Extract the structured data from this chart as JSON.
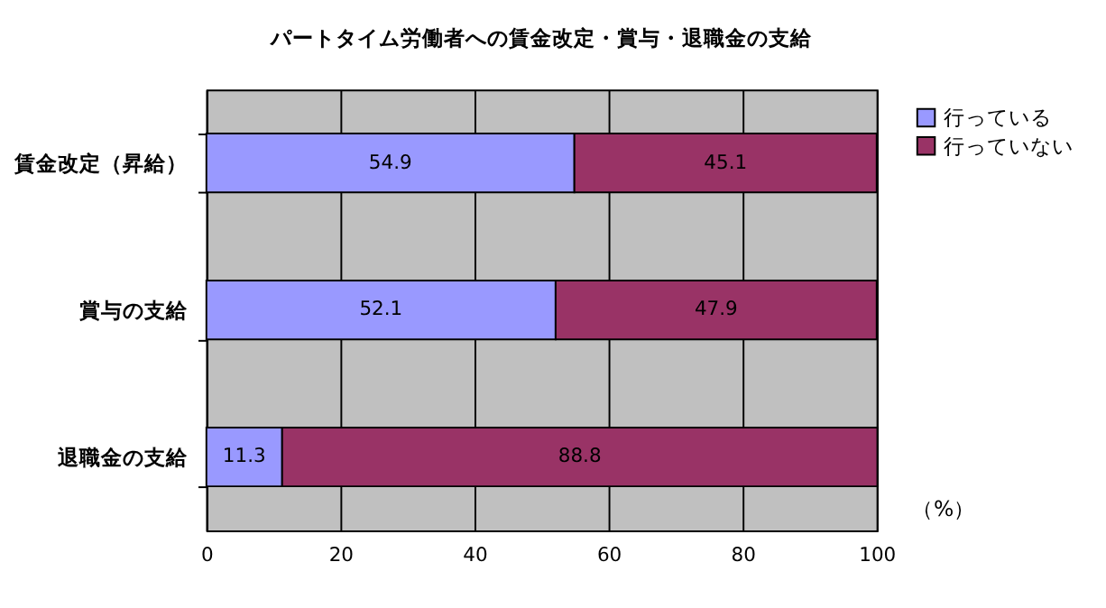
{
  "chart_data": {
    "type": "bar",
    "orientation": "horizontal",
    "stacked": true,
    "title": "パートタイム労働者への賃金改定・賞与・退職金の支給",
    "categories": [
      "賃金改定（昇給）",
      "賞与の支給",
      "退職金の支給"
    ],
    "series": [
      {
        "name": "行っている",
        "color": "#9999ff",
        "values": [
          54.9,
          52.1,
          11.3
        ]
      },
      {
        "name": "行っていない",
        "color": "#993366",
        "values": [
          45.1,
          47.9,
          88.8
        ]
      }
    ],
    "xlim": [
      0,
      100
    ],
    "xticks": [
      0,
      20,
      40,
      60,
      80,
      100
    ],
    "grid": "x",
    "legend": "right",
    "data_labels": true,
    "annotations": [
      "（%）"
    ]
  }
}
